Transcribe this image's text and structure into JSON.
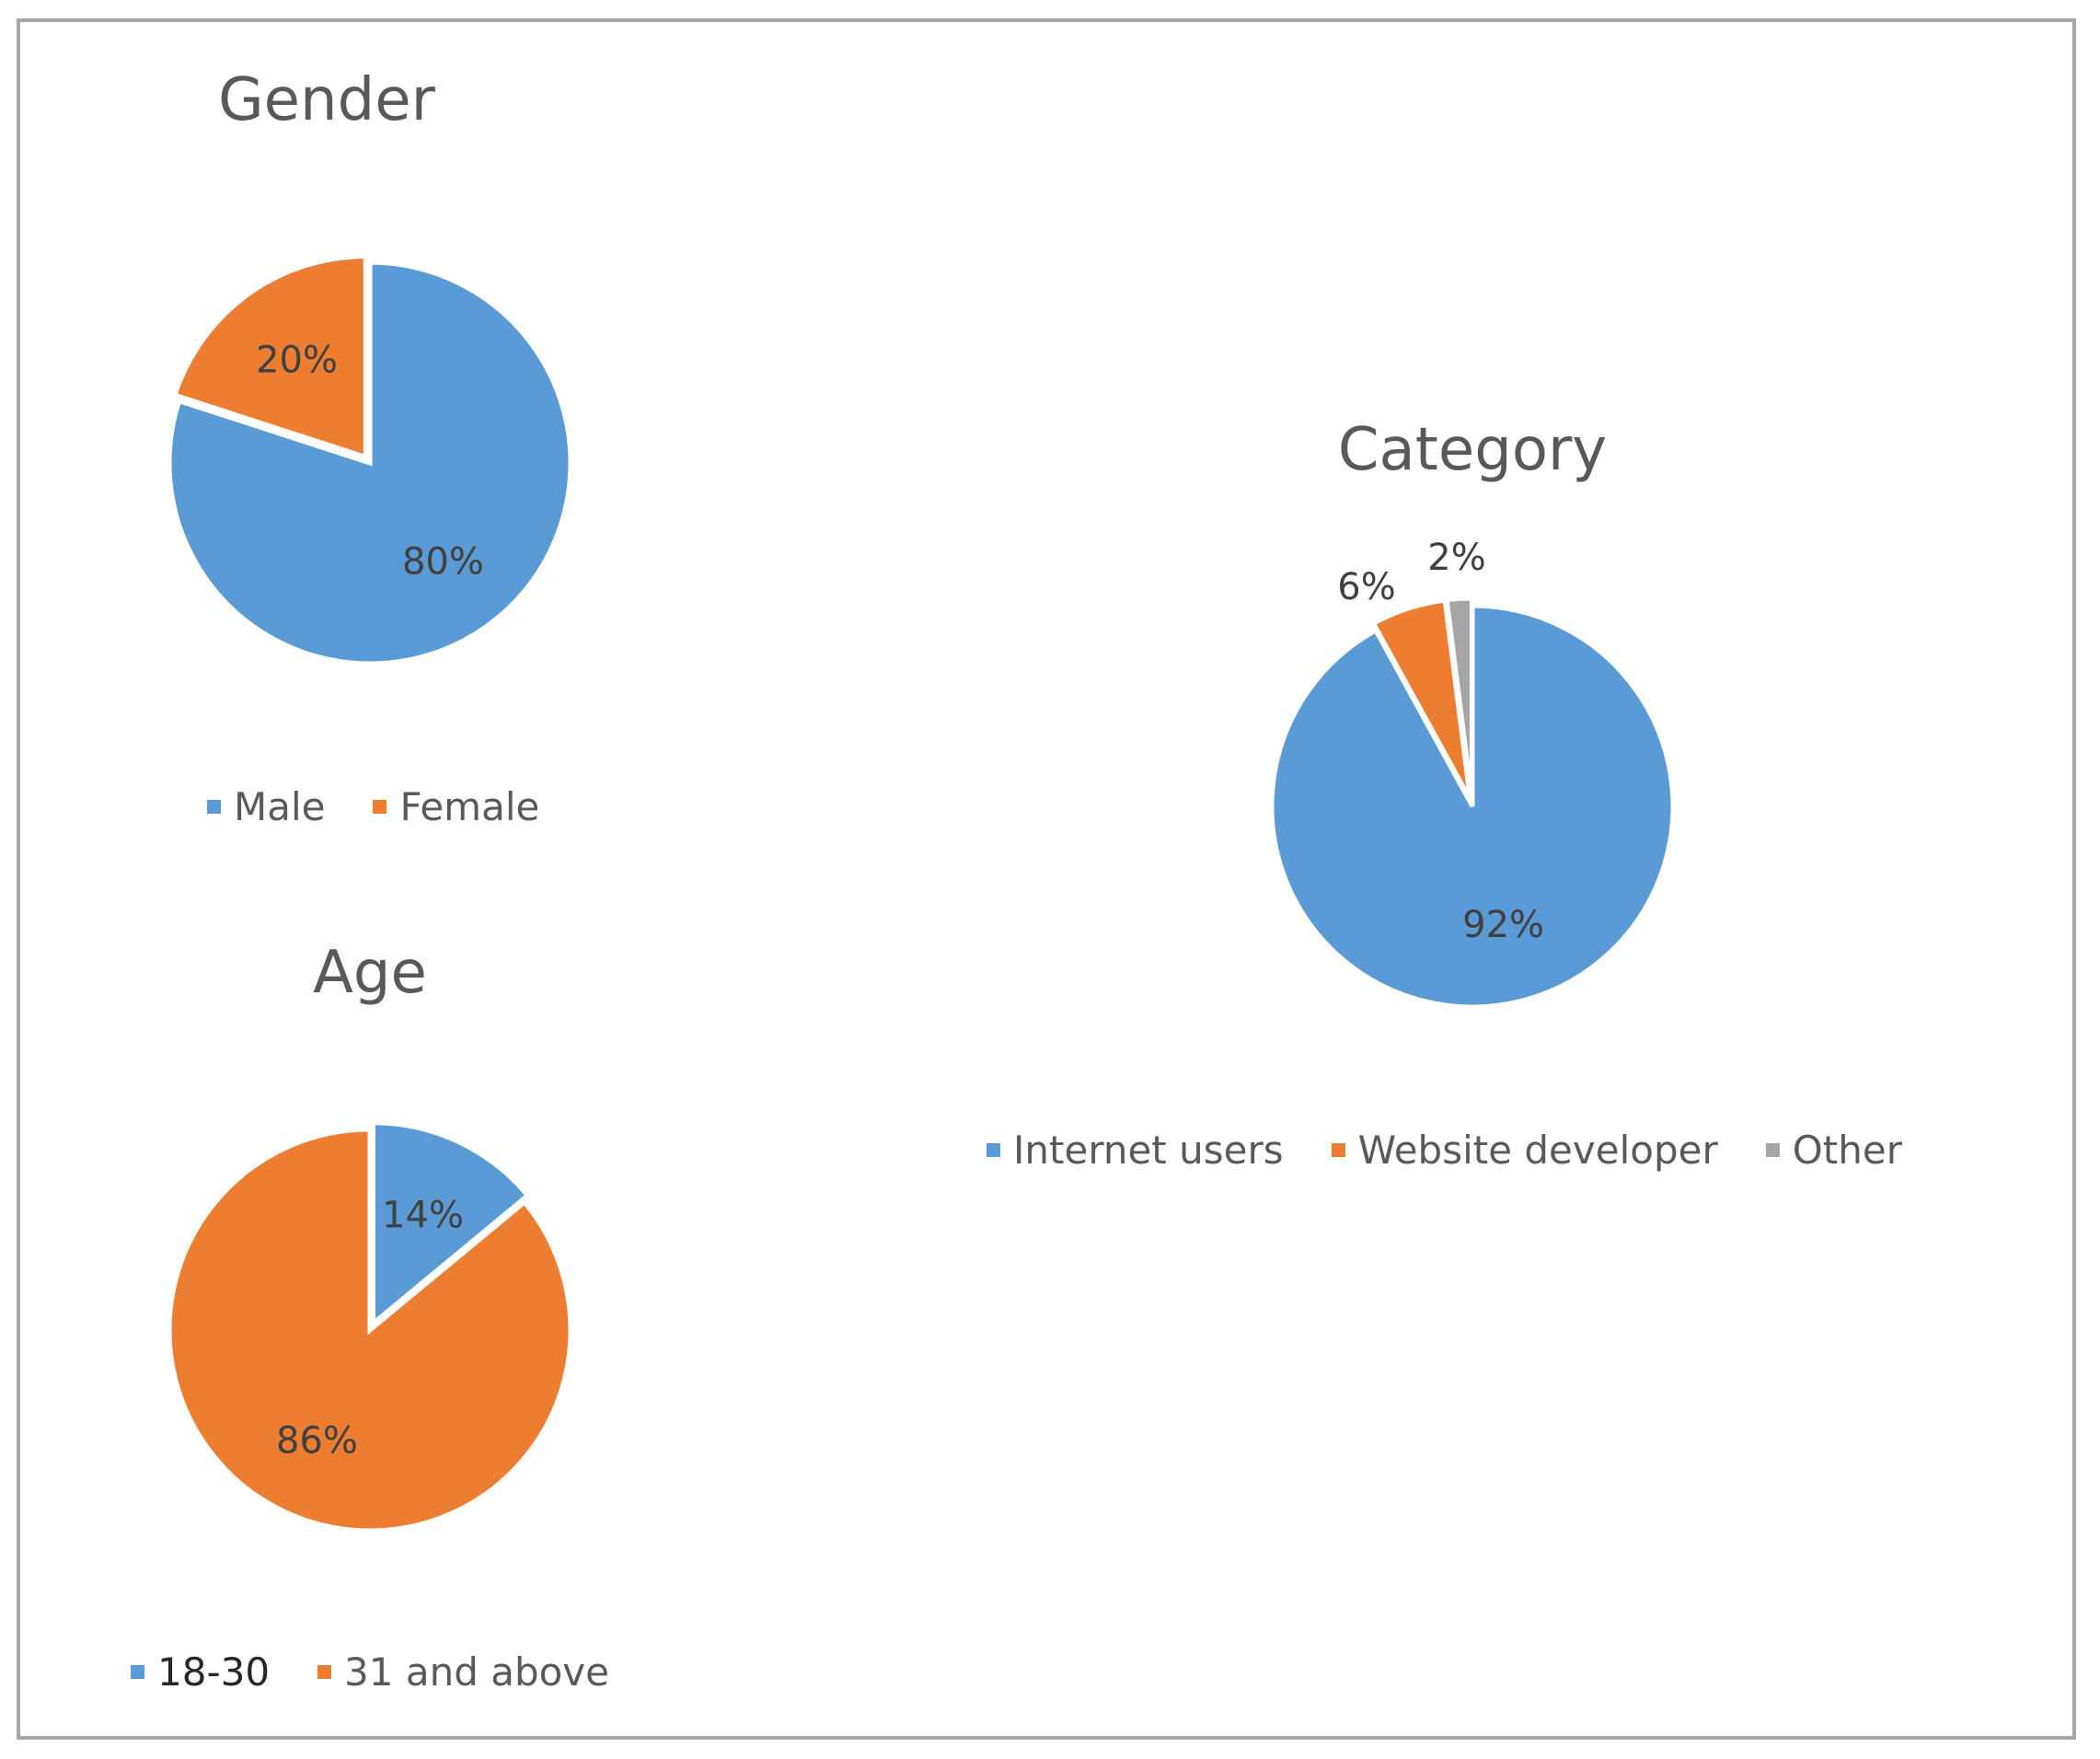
{
  "colors": {
    "blue": "#5b9bd5",
    "orange": "#ed7d31",
    "gray": "#a5a5a5"
  },
  "chart_data": [
    {
      "type": "pie",
      "title": "Gender",
      "categories": [
        "Male",
        "Female"
      ],
      "values": [
        80,
        20
      ],
      "labels": [
        "80%",
        "20%"
      ],
      "colors": [
        "#5b9bd5",
        "#ed7d31"
      ],
      "legend": "bottom"
    },
    {
      "type": "pie",
      "title": "Age",
      "categories": [
        "18-30",
        "31 and above"
      ],
      "values": [
        14,
        86
      ],
      "labels": [
        "14%",
        "86%"
      ],
      "colors": [
        "#5b9bd5",
        "#ed7d31"
      ],
      "legend": "bottom"
    },
    {
      "type": "pie",
      "title": "Category",
      "categories": [
        "Internet users",
        "Website developer",
        "Other"
      ],
      "values": [
        92,
        6,
        2
      ],
      "labels": [
        "92%",
        "6%",
        "2%"
      ],
      "colors": [
        "#5b9bd5",
        "#ed7d31",
        "#a5a5a5"
      ],
      "legend": "bottom"
    }
  ]
}
